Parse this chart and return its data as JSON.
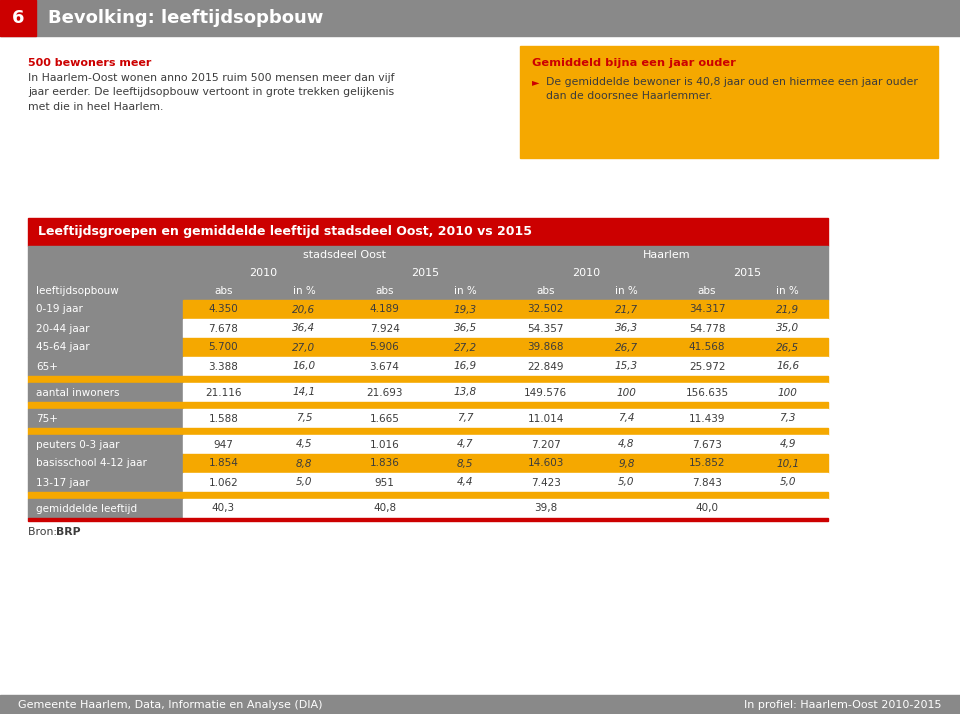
{
  "page_title": "Bevolking: leeftijdsopbouw",
  "header_bg": "#898989",
  "header_num_bg": "#cc0000",
  "header_text_color": "#ffffff",
  "left_text_title": "500 bewoners meer",
  "left_text_body": "In Haarlem-Oost wonen anno 2015 ruim 500 mensen meer dan vijf\njaar eerder. De leeftijdsopbouw vertoont in grote trekken gelijkenis\nmet die in heel Haarlem.",
  "right_box_bg": "#f5a800",
  "right_box_title": "Gemiddeld bijna een jaar ouder",
  "right_box_body": "De gemiddelde bewoner is 40,8 jaar oud en hiermee een jaar ouder\ndan de doorsnee Haarlemmer.",
  "table_title": "Leeftijdsgroepen en gemiddelde leeftijd stadsdeel Oost, 2010 vs 2015",
  "table_title_bg": "#cc0000",
  "table_title_text": "#ffffff",
  "table_header_bg": "#898989",
  "table_header_text": "#ffffff",
  "col_header_stadsdeel": "stadsdeel Oost",
  "col_header_haarlem": "Haarlem",
  "col_year_2010": "2010",
  "col_year_2015": "2015",
  "col_abs": "abs",
  "col_pct": "in %",
  "row_label_col": "leeftijdsopbouw",
  "rows": [
    {
      "label": "0-19 jaar",
      "highlight": true,
      "sep": false,
      "so_abs_2010": "4.350",
      "so_pct_2010": "20,6",
      "so_abs_2015": "4.189",
      "so_pct_2015": "19,3",
      "hl_abs_2010": "32.502",
      "hl_pct_2010": "21,7",
      "hl_abs_2015": "34.317",
      "hl_pct_2015": "21,9"
    },
    {
      "label": "20-44 jaar",
      "highlight": false,
      "sep": false,
      "so_abs_2010": "7.678",
      "so_pct_2010": "36,4",
      "so_abs_2015": "7.924",
      "so_pct_2015": "36,5",
      "hl_abs_2010": "54.357",
      "hl_pct_2010": "36,3",
      "hl_abs_2015": "54.778",
      "hl_pct_2015": "35,0"
    },
    {
      "label": "45-64 jaar",
      "highlight": true,
      "sep": false,
      "so_abs_2010": "5.700",
      "so_pct_2010": "27,0",
      "so_abs_2015": "5.906",
      "so_pct_2015": "27,2",
      "hl_abs_2010": "39.868",
      "hl_pct_2010": "26,7",
      "hl_abs_2015": "41.568",
      "hl_pct_2015": "26,5"
    },
    {
      "label": "65+",
      "highlight": false,
      "sep": false,
      "so_abs_2010": "3.388",
      "so_pct_2010": "16,0",
      "so_abs_2015": "3.674",
      "so_pct_2015": "16,9",
      "hl_abs_2010": "22.849",
      "hl_pct_2010": "15,3",
      "hl_abs_2015": "25.972",
      "hl_pct_2015": "16,6"
    },
    {
      "label": "",
      "highlight": true,
      "sep": true,
      "so_abs_2010": "",
      "so_pct_2010": "",
      "so_abs_2015": "",
      "so_pct_2015": "",
      "hl_abs_2010": "",
      "hl_pct_2010": "",
      "hl_abs_2015": "",
      "hl_pct_2015": ""
    },
    {
      "label": "aantal inwoners",
      "highlight": false,
      "sep": false,
      "so_abs_2010": "21.116",
      "so_pct_2010": "14,1",
      "so_abs_2015": "21.693",
      "so_pct_2015": "13,8",
      "hl_abs_2010": "149.576",
      "hl_pct_2010": "100",
      "hl_abs_2015": "156.635",
      "hl_pct_2015": "100"
    },
    {
      "label": "",
      "highlight": true,
      "sep": true,
      "so_abs_2010": "",
      "so_pct_2010": "",
      "so_abs_2015": "",
      "so_pct_2015": "",
      "hl_abs_2010": "",
      "hl_pct_2010": "",
      "hl_abs_2015": "",
      "hl_pct_2015": ""
    },
    {
      "label": "75+",
      "highlight": false,
      "sep": false,
      "so_abs_2010": "1.588",
      "so_pct_2010": "7,5",
      "so_abs_2015": "1.665",
      "so_pct_2015": "7,7",
      "hl_abs_2010": "11.014",
      "hl_pct_2010": "7,4",
      "hl_abs_2015": "11.439",
      "hl_pct_2015": "7,3"
    },
    {
      "label": "",
      "highlight": true,
      "sep": true,
      "so_abs_2010": "",
      "so_pct_2010": "",
      "so_abs_2015": "",
      "so_pct_2015": "",
      "hl_abs_2010": "",
      "hl_pct_2010": "",
      "hl_abs_2015": "",
      "hl_pct_2015": ""
    },
    {
      "label": "peuters 0-3 jaar",
      "highlight": false,
      "sep": false,
      "so_abs_2010": "947",
      "so_pct_2010": "4,5",
      "so_abs_2015": "1.016",
      "so_pct_2015": "4,7",
      "hl_abs_2010": "7.207",
      "hl_pct_2010": "4,8",
      "hl_abs_2015": "7.673",
      "hl_pct_2015": "4,9"
    },
    {
      "label": "basisschool 4-12 jaar",
      "highlight": true,
      "sep": false,
      "so_abs_2010": "1.854",
      "so_pct_2010": "8,8",
      "so_abs_2015": "1.836",
      "so_pct_2015": "8,5",
      "hl_abs_2010": "14.603",
      "hl_pct_2010": "9,8",
      "hl_abs_2015": "15.852",
      "hl_pct_2015": "10,1"
    },
    {
      "label": "13-17 jaar",
      "highlight": false,
      "sep": false,
      "so_abs_2010": "1.062",
      "so_pct_2010": "5,0",
      "so_abs_2015": "951",
      "so_pct_2015": "4,4",
      "hl_abs_2010": "7.423",
      "hl_pct_2010": "5,0",
      "hl_abs_2015": "7.843",
      "hl_pct_2015": "5,0"
    },
    {
      "label": "",
      "highlight": true,
      "sep": true,
      "so_abs_2010": "",
      "so_pct_2010": "",
      "so_abs_2015": "",
      "so_pct_2015": "",
      "hl_abs_2010": "",
      "hl_pct_2010": "",
      "hl_abs_2015": "",
      "hl_pct_2015": ""
    },
    {
      "label": "gemiddelde leeftijd",
      "highlight": false,
      "sep": false,
      "so_abs_2010": "40,3",
      "so_pct_2010": "",
      "so_abs_2015": "40,8",
      "so_pct_2015": "",
      "hl_abs_2010": "39,8",
      "hl_pct_2010": "",
      "hl_abs_2015": "40,0",
      "hl_pct_2015": ""
    }
  ],
  "bron_text": "Bron:",
  "bron_bold": "BRP",
  "footer_left": "Gemeente Haarlem, Data, Informatie en Analyse (DIA)",
  "footer_right": "In profiel: Haarlem-Oost 2010-2015",
  "footer_bg": "#898989",
  "footer_text_color": "#ffffff",
  "highlight_color": "#f5a800",
  "normal_color": "#ffffff",
  "label_bg": "#898989",
  "label_text_color": "#ffffff",
  "red_accent": "#cc0000",
  "text_red": "#cc0000",
  "text_dark": "#3c3c3c",
  "text_italic_color": "#555555"
}
